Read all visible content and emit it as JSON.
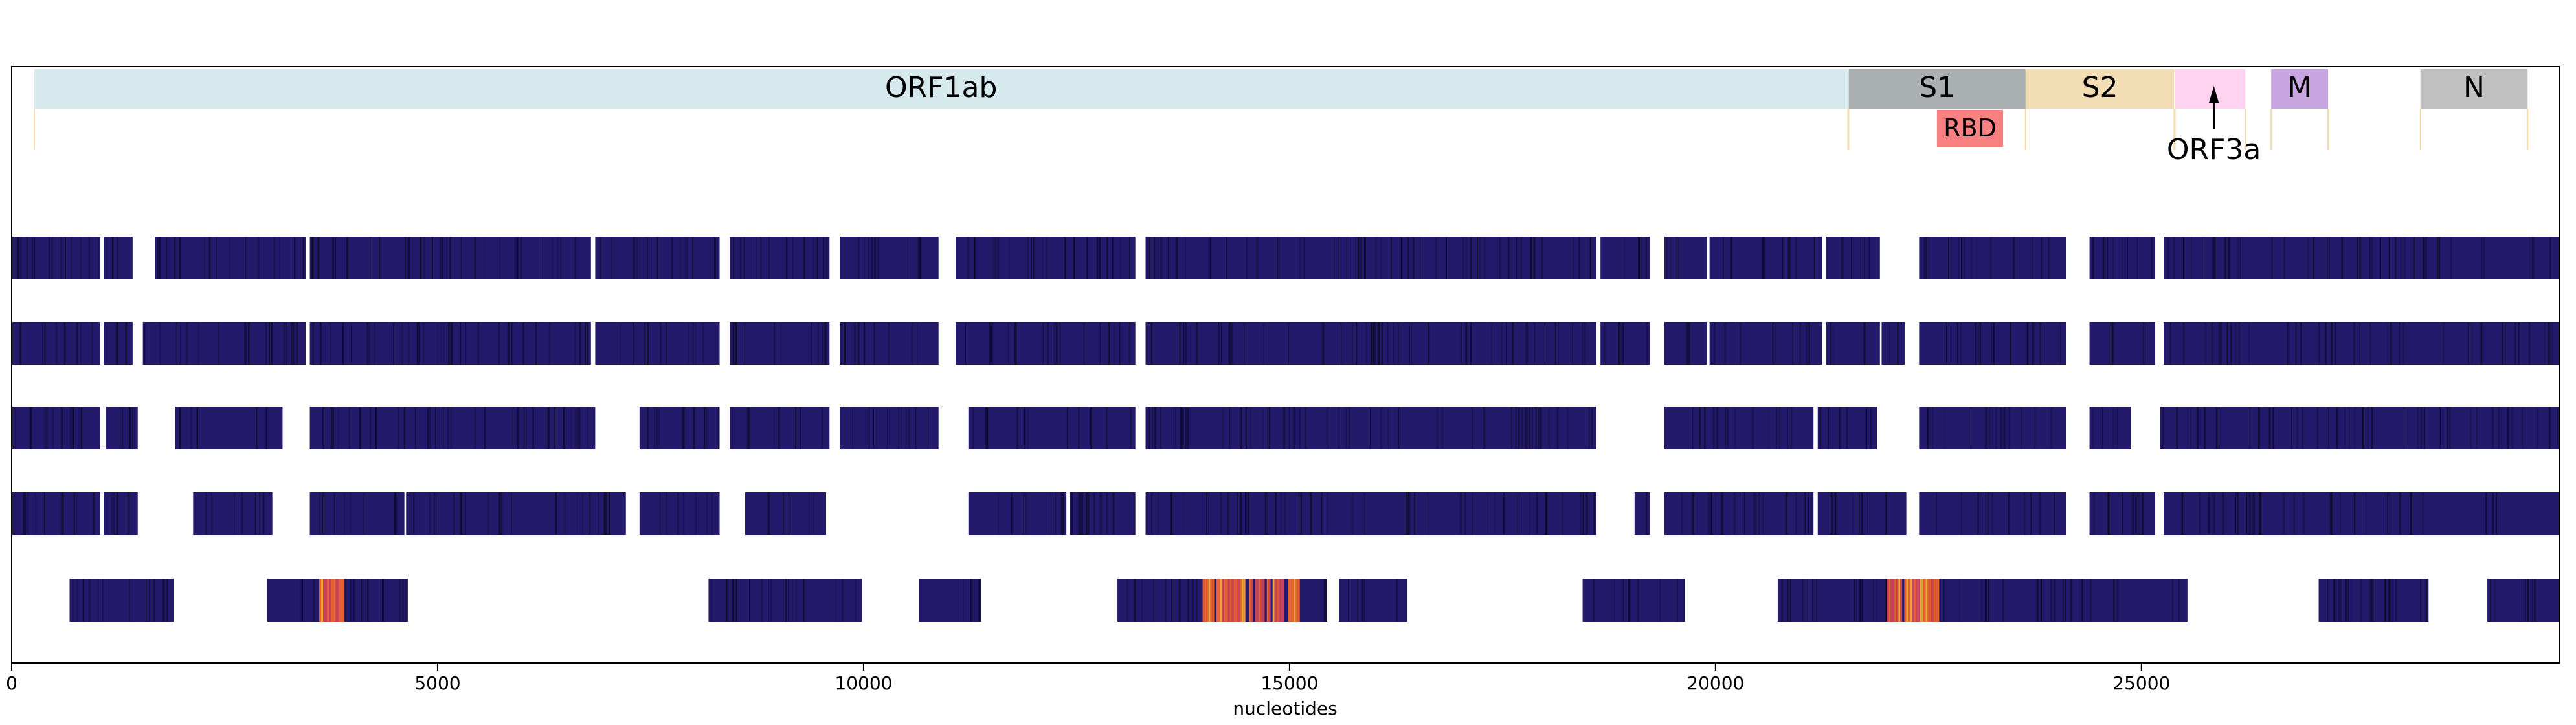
{
  "chart_data": {
    "type": "heatmap",
    "xlabel": "nucleotides",
    "xlim": [
      0,
      29903
    ],
    "x_ticks": [
      {
        "value": 0,
        "label": "0"
      },
      {
        "value": 5000,
        "label": "5000"
      },
      {
        "value": 10000,
        "label": "10000"
      },
      {
        "value": 15000,
        "label": "15000"
      },
      {
        "value": 20000,
        "label": "20000"
      },
      {
        "value": 25000,
        "label": "25000"
      }
    ],
    "genes": [
      {
        "label": "ORF1ab",
        "start": 266,
        "end": 21555,
        "color": "#d6eaee"
      },
      {
        "label": "S1",
        "start": 21563,
        "end": 23640,
        "color": "#aab0b2"
      },
      {
        "label": "S2",
        "start": 23640,
        "end": 25384,
        "color": "#f2dcb3"
      },
      {
        "label": "",
        "start": 25393,
        "end": 26220,
        "color": "#fdd3ef"
      },
      {
        "label": "M",
        "start": 26523,
        "end": 27191,
        "color": "#c9a6e2"
      },
      {
        "label": "N",
        "start": 28274,
        "end": 29533,
        "color": "#c0c0c0"
      }
    ],
    "subfeatures": [
      {
        "label": "RBD",
        "start": 22599,
        "end": 23376,
        "color": "#f88080"
      }
    ],
    "annotations": [
      {
        "label": "ORF3a",
        "x": 25850
      }
    ],
    "colors": {
      "base": "#241a6c",
      "dark": "#0c0a26",
      "hot": "#e8612e",
      "hot2": "#c9445a"
    },
    "rows": [
      {
        "segments": [
          [
            0,
            1040
          ],
          [
            1080,
            1420
          ],
          [
            1680,
            3450
          ],
          [
            3500,
            6800
          ],
          [
            6850,
            8310
          ],
          [
            8430,
            9600
          ],
          [
            9720,
            10880
          ],
          [
            11080,
            13190
          ],
          [
            13310,
            18600
          ],
          [
            18650,
            19230
          ],
          [
            19400,
            19900
          ],
          [
            19930,
            21250
          ],
          [
            21300,
            21930
          ],
          [
            22390,
            24120
          ],
          [
            24390,
            25160
          ],
          [
            25260,
            29903
          ]
        ],
        "hot": []
      },
      {
        "segments": [
          [
            0,
            1040
          ],
          [
            1080,
            1420
          ],
          [
            1540,
            3450
          ],
          [
            3500,
            6800
          ],
          [
            6850,
            8310
          ],
          [
            8430,
            9600
          ],
          [
            9720,
            10880
          ],
          [
            11080,
            13190
          ],
          [
            13310,
            18600
          ],
          [
            18650,
            19230
          ],
          [
            19400,
            19900
          ],
          [
            19930,
            21250
          ],
          [
            21300,
            21930
          ],
          [
            21950,
            22220
          ],
          [
            22390,
            24120
          ],
          [
            24390,
            25160
          ],
          [
            25260,
            29903
          ]
        ],
        "hot": []
      },
      {
        "segments": [
          [
            0,
            1040
          ],
          [
            1110,
            1480
          ],
          [
            1920,
            3180
          ],
          [
            3500,
            6850
          ],
          [
            7370,
            8310
          ],
          [
            8430,
            9600
          ],
          [
            9720,
            10880
          ],
          [
            11230,
            13190
          ],
          [
            13310,
            18600
          ],
          [
            19400,
            21150
          ],
          [
            21200,
            21900
          ],
          [
            22390,
            24120
          ],
          [
            24390,
            24880
          ],
          [
            25220,
            29903
          ]
        ],
        "hot": []
      },
      {
        "segments": [
          [
            0,
            1040
          ],
          [
            1080,
            1480
          ],
          [
            2130,
            3060
          ],
          [
            3500,
            4610
          ],
          [
            4630,
            7210
          ],
          [
            7370,
            8310
          ],
          [
            8610,
            9560
          ],
          [
            11230,
            12380
          ],
          [
            12420,
            13190
          ],
          [
            13310,
            18600
          ],
          [
            19050,
            19230
          ],
          [
            19400,
            21150
          ],
          [
            21200,
            22240
          ],
          [
            22390,
            24120
          ],
          [
            24390,
            25160
          ],
          [
            25260,
            29903
          ]
        ],
        "hot": []
      },
      {
        "segments": [
          [
            680,
            1900
          ],
          [
            3000,
            4650
          ],
          [
            8180,
            9980
          ],
          [
            10650,
            11380
          ],
          [
            12980,
            15440
          ],
          [
            15580,
            16380
          ],
          [
            18440,
            19640
          ],
          [
            20730,
            25540
          ],
          [
            27080,
            28370
          ],
          [
            29060,
            29903
          ]
        ],
        "hot": [
          [
            3610,
            3890
          ],
          [
            13980,
            15110
          ],
          [
            22010,
            22620
          ]
        ]
      }
    ]
  }
}
